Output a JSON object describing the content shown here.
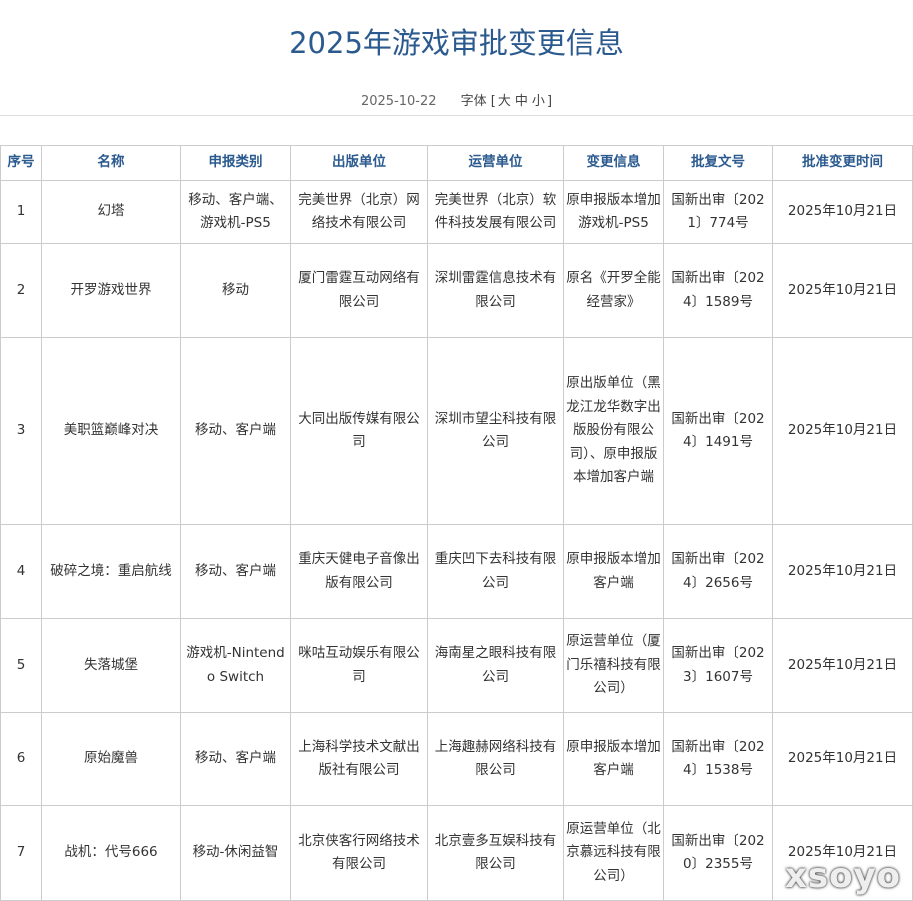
{
  "title": "2025年游戏审批变更信息",
  "date": "2025-10-22",
  "font_size": {
    "label": "字体 [",
    "large": "大",
    "medium": "中",
    "small": "小",
    "end": "]"
  },
  "columns": [
    "序号",
    "名称",
    "申报类别",
    "出版单位",
    "运营单位",
    "变更信息",
    "批复文号",
    "批准变更时间"
  ],
  "rows": [
    [
      "1",
      "幻塔",
      "移动、客户端、游戏机-PS5",
      "完美世界（北京）网络技术有限公司",
      "完美世界（北京）软件科技发展有限公司",
      "原申报版本增加游戏机-PS5",
      "国新出审〔2021〕774号",
      "2025年10月21日"
    ],
    [
      "2",
      "开罗游戏世界",
      "移动",
      "厦门雷霆互动网络有限公司",
      "深圳雷霆信息技术有限公司",
      "原名《开罗全能经营家》",
      "国新出审〔2024〕1589号",
      "2025年10月21日"
    ],
    [
      "3",
      "美职篮巅峰对决",
      "移动、客户端",
      "大同出版传媒有限公司",
      "深圳市望尘科技有限公司",
      "原出版单位（黑龙江龙华数字出版股份有限公司）、原申报版本增加客户端",
      "国新出审〔2024〕1491号",
      "2025年10月21日"
    ],
    [
      "4",
      "破碎之境：重启航线",
      "移动、客户端",
      "重庆天健电子音像出版有限公司",
      "重庆凹下去科技有限公司",
      "原申报版本增加客户端",
      "国新出审〔2024〕2656号",
      "2025年10月21日"
    ],
    [
      "5",
      "失落城堡",
      "游戏机-Nintendo Switch",
      "咪咕互动娱乐有限公司",
      "海南星之眼科技有限公司",
      "原运营单位（厦门乐禧科技有限公司）",
      "国新出审〔2023〕1607号",
      "2025年10月21日"
    ],
    [
      "6",
      "原始魔兽",
      "移动、客户端",
      "上海科学技术文献出版社有限公司",
      "上海趣赫网络科技有限公司",
      "原申报版本增加客户端",
      "国新出审〔2024〕1538号",
      "2025年10月21日"
    ],
    [
      "7",
      "战机：代号666",
      "移动-休闲益智",
      "北京侠客行网络技术有限公司",
      "北京壹多互娱科技有限公司",
      "原运营单位（北京慕远科技有限公司）",
      "国新出审〔2020〕2355号",
      "2025年10月21日"
    ]
  ],
  "watermark": "xsoyo"
}
